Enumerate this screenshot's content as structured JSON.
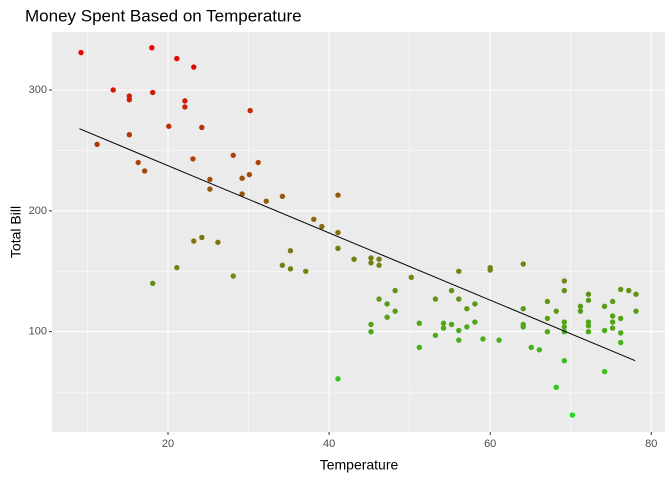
{
  "chart_data": {
    "type": "scatter",
    "title": "Money Spent Based on Temperature",
    "x_label": "Temperature",
    "y_label": "Total Bill",
    "series": [
      {
        "x": [
          9.2,
          18,
          21.1,
          23.2,
          13.2,
          15.2,
          15.2,
          18.1,
          22.1,
          22.1,
          30.2,
          20.1,
          24.2,
          15.2,
          11.2,
          28.1,
          23.1,
          16.3,
          31.2,
          17.1,
          30.1,
          29.2,
          25.2,
          25.2,
          29.2,
          41.1,
          34.2,
          32.2,
          38.1,
          39.1,
          23.2,
          24.2,
          26.2,
          41.1,
          41.1,
          35.2,
          43.1,
          45.2,
          46.2,
          45.2,
          46.2,
          34.2,
          35.2,
          37.1,
          21.1,
          28.1,
          18.1,
          50.2,
          48.2,
          55.2,
          56.1,
          60,
          60,
          64.1,
          46.2,
          47.2,
          48.2,
          47.2,
          53.2,
          56.1,
          57.1,
          58.1,
          51.2,
          45.2,
          45.2,
          54.2,
          54.2,
          55.2,
          56.1,
          57.1,
          58.1,
          53.2,
          56.1,
          59.1,
          61.1,
          51.2,
          64.1,
          64.1,
          64.1,
          65.1,
          66.1,
          67.1,
          67.1,
          67.1,
          68.2,
          69.2,
          69.2,
          69.2,
          69.2,
          69.2,
          69.2,
          71.2,
          71.2,
          72.2,
          72.2,
          72.2,
          72.2,
          72.2,
          74.2,
          75.2,
          75.2,
          75.2,
          75.2,
          76.2,
          76.2,
          76.2,
          76.2,
          77.2,
          78.1,
          78.1,
          74.2,
          74.2,
          68.2,
          70.2,
          41.1
        ],
        "values": [
          331,
          335,
          326,
          319,
          300,
          295,
          292,
          298,
          291,
          286,
          283,
          270,
          269,
          263,
          255,
          246,
          243,
          240,
          240,
          233,
          230,
          227,
          226,
          218,
          214,
          213,
          212,
          208,
          193,
          187,
          175,
          178,
          174,
          182,
          169,
          167,
          160,
          161,
          160,
          157,
          155,
          155,
          152,
          150,
          153,
          146,
          140,
          145,
          134,
          134,
          150,
          153,
          151,
          156,
          127,
          123,
          117,
          112,
          127,
          127,
          119,
          123,
          107,
          106,
          100,
          107,
          103,
          106,
          101,
          104,
          108,
          97,
          93,
          94,
          93,
          87,
          119,
          106,
          104,
          87,
          85,
          125,
          111,
          100,
          117,
          142,
          134,
          108,
          104,
          100,
          76,
          117,
          121,
          126,
          131,
          108,
          105,
          100,
          121,
          125,
          113,
          108,
          103,
          135,
          111,
          99,
          91,
          134,
          131,
          117,
          101,
          67,
          54,
          31,
          61
        ]
      }
    ],
    "color_low": "#1edc1e",
    "color_high": "#e80000",
    "trend_line": {
      "x": [
        9,
        78
      ],
      "y": [
        268,
        76
      ],
      "color": "#000000"
    },
    "xlim": [
      5.6,
      81.7
    ],
    "ylim": [
      17,
      348
    ],
    "xticks": [
      20,
      40,
      60,
      80
    ],
    "yticks": [
      100,
      200,
      300
    ],
    "minor_xticks": [
      10,
      30,
      50,
      70
    ],
    "minor_yticks": [
      50,
      150,
      250
    ],
    "grid": true
  }
}
